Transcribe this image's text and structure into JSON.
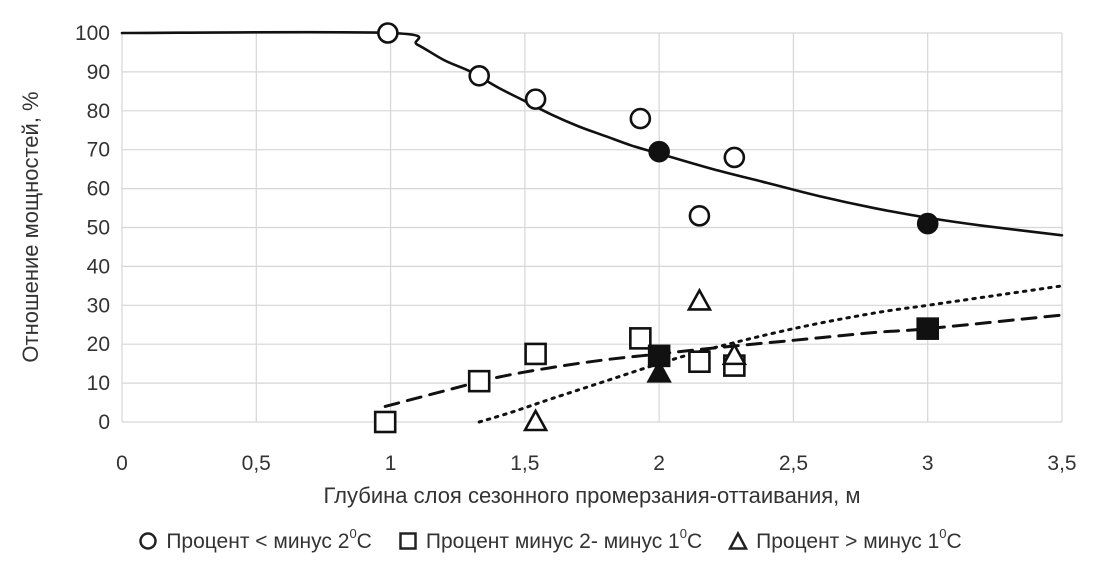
{
  "chart_data": {
    "type": "scatter",
    "title": "",
    "xlabel": "Глубина слоя сезонного промерзания-оттаивания, м",
    "ylabel": "Отношение мощностей, %",
    "xlim": [
      0,
      3.5
    ],
    "ylim": [
      0,
      100
    ],
    "x_ticks": [
      "0",
      "0,5",
      "1",
      "1,5",
      "2",
      "2,5",
      "3",
      "3,5"
    ],
    "y_ticks": [
      "0",
      "10",
      "20",
      "30",
      "40",
      "50",
      "60",
      "70",
      "80",
      "90",
      "100"
    ],
    "grid": true,
    "legend_position": "bottom",
    "series": [
      {
        "name": "Процент < минус  2",
        "name_sup": "0",
        "name_suffix": "С",
        "marker": "circle",
        "line_style": "solid",
        "points_open": [
          [
            0.99,
            100
          ],
          [
            1.33,
            89
          ],
          [
            1.54,
            83
          ],
          [
            1.93,
            78
          ],
          [
            2.28,
            68
          ],
          [
            2.15,
            53
          ]
        ],
        "points_filled": [
          [
            2.0,
            69.5
          ],
          [
            3.0,
            51
          ]
        ],
        "trend": [
          [
            0,
            100
          ],
          [
            1.0,
            100
          ],
          [
            1.1,
            97
          ],
          [
            1.2,
            93
          ],
          [
            1.3,
            90
          ],
          [
            1.4,
            86
          ],
          [
            1.5,
            82.5
          ],
          [
            1.6,
            79
          ],
          [
            1.7,
            76
          ],
          [
            1.8,
            73.5
          ],
          [
            1.9,
            71
          ],
          [
            2.0,
            69
          ],
          [
            2.2,
            65
          ],
          [
            2.4,
            61.5
          ],
          [
            2.6,
            58
          ],
          [
            2.8,
            55
          ],
          [
            3.0,
            52.5
          ],
          [
            3.2,
            50.5
          ],
          [
            3.5,
            48
          ]
        ]
      },
      {
        "name": "Процент минус 2- минус 1",
        "name_sup": "0",
        "name_suffix": "С",
        "marker": "square",
        "line_style": "dashed",
        "points_open": [
          [
            0.98,
            0
          ],
          [
            1.33,
            10.5
          ],
          [
            1.54,
            17.5
          ],
          [
            1.93,
            21.5
          ],
          [
            2.15,
            15.5
          ],
          [
            2.28,
            14.5
          ]
        ],
        "points_filled": [
          [
            2.0,
            17
          ],
          [
            3.0,
            24
          ]
        ],
        "trend": [
          [
            0.98,
            4
          ],
          [
            1.2,
            8
          ],
          [
            1.4,
            11.5
          ],
          [
            1.6,
            14
          ],
          [
            1.8,
            16
          ],
          [
            2.0,
            17.5
          ],
          [
            2.2,
            19
          ],
          [
            2.5,
            21
          ],
          [
            2.8,
            23
          ],
          [
            3.0,
            24
          ],
          [
            3.5,
            27.5
          ]
        ]
      },
      {
        "name": "Процент > минус  1",
        "name_sup": "0",
        "name_suffix": "С",
        "marker": "triangle",
        "line_style": "dotted",
        "points_open": [
          [
            1.54,
            0
          ],
          [
            2.15,
            31
          ],
          [
            2.28,
            17
          ]
        ],
        "points_filled": [
          [
            2.0,
            12.5
          ]
        ],
        "trend": [
          [
            1.33,
            0
          ],
          [
            1.45,
            2.5
          ],
          [
            1.6,
            6
          ],
          [
            1.8,
            10.5
          ],
          [
            2.0,
            15
          ],
          [
            2.2,
            19
          ],
          [
            2.5,
            24
          ],
          [
            2.8,
            28
          ],
          [
            3.0,
            30
          ],
          [
            3.2,
            32
          ],
          [
            3.5,
            35
          ]
        ]
      }
    ]
  }
}
